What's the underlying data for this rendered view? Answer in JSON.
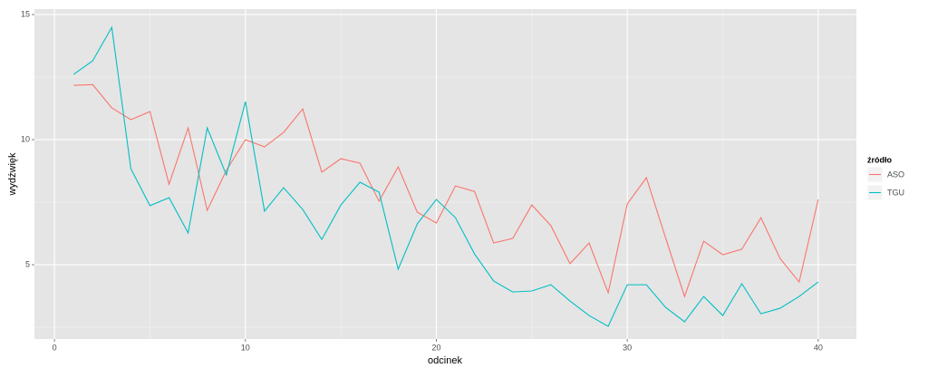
{
  "chart_data": {
    "type": "line",
    "x_label": "odcinek",
    "y_label": "wydźwięk",
    "legend_title": "źródło",
    "legend_position": "right",
    "x": [
      1,
      2,
      3,
      4,
      5,
      6,
      7,
      8,
      9,
      10,
      11,
      12,
      13,
      14,
      15,
      16,
      17,
      18,
      19,
      20,
      21,
      22,
      23,
      24,
      25,
      26,
      27,
      28,
      29,
      30,
      31,
      32,
      33,
      34,
      35,
      36,
      37,
      38,
      39,
      40
    ],
    "series": [
      {
        "name": "ASO",
        "color": "#f8766d",
        "values": [
          12.17,
          12.2,
          11.27,
          10.8,
          11.12,
          8.22,
          10.47,
          7.17,
          8.77,
          10.0,
          9.71,
          10.29,
          11.23,
          8.7,
          9.24,
          9.06,
          7.54,
          8.91,
          7.1,
          6.67,
          8.15,
          7.93,
          5.87,
          6.05,
          7.39,
          6.56,
          5.04,
          5.87,
          3.88,
          7.43,
          8.48,
          6.09,
          3.73,
          5.94,
          5.4,
          5.62,
          6.88,
          5.25,
          4.31,
          7.61
        ]
      },
      {
        "name": "TGU",
        "color": "#00bfc4",
        "values": [
          12.61,
          13.15,
          14.49,
          8.84,
          7.36,
          7.68,
          6.27,
          10.47,
          8.59,
          11.52,
          7.14,
          8.08,
          7.21,
          6.01,
          7.39,
          8.3,
          7.9,
          4.82,
          6.63,
          7.61,
          6.88,
          5.43,
          4.35,
          3.91,
          3.95,
          4.2,
          3.55,
          2.97,
          2.54,
          4.2,
          4.2,
          3.3,
          2.72,
          3.73,
          2.97,
          4.24,
          3.04,
          3.26,
          3.73,
          4.31
        ]
      }
    ],
    "xlim": [
      -1.05,
      42.0
    ],
    "xticks": [
      0,
      10,
      20,
      30,
      40
    ],
    "ylim": [
      2.03,
      15.22
    ],
    "yticks": [
      5,
      10,
      15
    ],
    "grid": true
  }
}
